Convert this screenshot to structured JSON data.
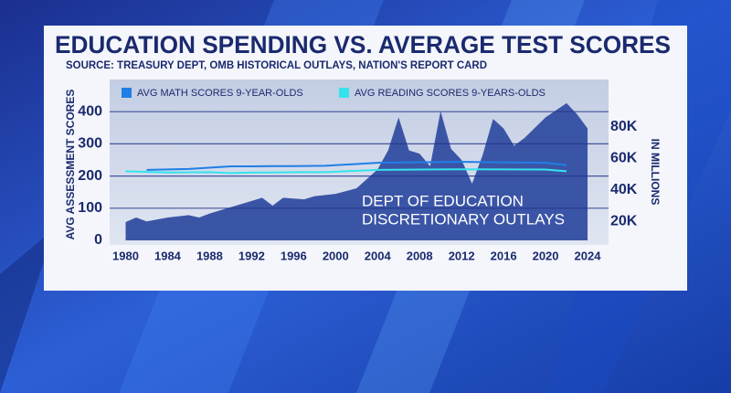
{
  "chart_data": {
    "type": "line",
    "title": "EDUCATION SPENDING VS. AVERAGE TEST SCORES",
    "subtitle": "SOURCE: TREASURY DEPT, OMB HISTORICAL OUTLAYS, NATION'S REPORT CARD",
    "y_label": "AVG ASSESSMENT SCORES",
    "y2_label": "IN MILLIONS",
    "annotation": [
      "DEPT OF EDUCATION",
      "DISCRETIONARY OUTLAYS"
    ],
    "xlim": [
      1979,
      2026
    ],
    "xticks": [
      1980,
      1984,
      1988,
      1992,
      1996,
      2000,
      2004,
      2008,
      2012,
      2016,
      2020,
      2024
    ],
    "ylim": [
      0,
      500
    ],
    "yticks": [
      0,
      100,
      200,
      300,
      400
    ],
    "y2lim": [
      8000,
      110000
    ],
    "y2ticks": [
      {
        "value": 20000,
        "label": "20K"
      },
      {
        "value": 40000,
        "label": "40K"
      },
      {
        "value": 60000,
        "label": "60K"
      },
      {
        "value": 80000,
        "label": "80K"
      }
    ],
    "grid": true,
    "series": [
      {
        "type": "area",
        "axis": "y2",
        "color": "#3b55a6",
        "x": [
          1980,
          1981,
          1982,
          1984,
          1986,
          1987,
          1988,
          1990,
          1992,
          1993,
          1994,
          1995,
          1997,
          1998,
          2000,
          2002,
          2004,
          2005,
          2006,
          2007,
          2008,
          2009,
          2010,
          2011,
          2012,
          2013,
          2014,
          2015,
          2016,
          2017,
          2018,
          2020,
          2022,
          2023,
          2024
        ],
        "values": [
          19600,
          22500,
          20000,
          22500,
          24000,
          22500,
          25000,
          29000,
          33000,
          35000,
          30000,
          35000,
          34000,
          36000,
          37500,
          41000,
          53000,
          65000,
          86000,
          65000,
          63000,
          55000,
          90000,
          66000,
          59000,
          44000,
          62000,
          85000,
          79000,
          68000,
          73000,
          86000,
          95000,
          88000,
          79000
        ]
      },
      {
        "name": "AVG MATH SCORES 9-YEAR-OLDS",
        "color": "#1f7fe6",
        "x": [
          1982,
          1986,
          1990,
          1992,
          1994,
          1996,
          1999,
          2004,
          2008,
          2012,
          2020,
          2022
        ],
        "values": [
          219,
          222,
          230,
          230,
          231,
          231,
          232,
          241,
          243,
          244,
          241,
          234
        ]
      },
      {
        "name": "AVG READING SCORES 9-YEARS-OLDS",
        "color": "#35e3ec",
        "x": [
          1980,
          1984,
          1988,
          1990,
          1992,
          1994,
          1996,
          1999,
          2004,
          2008,
          2012,
          2020,
          2022
        ],
        "values": [
          215,
          211,
          212,
          209,
          211,
          211,
          212,
          212,
          219,
          220,
          221,
          220,
          215
        ]
      }
    ]
  }
}
